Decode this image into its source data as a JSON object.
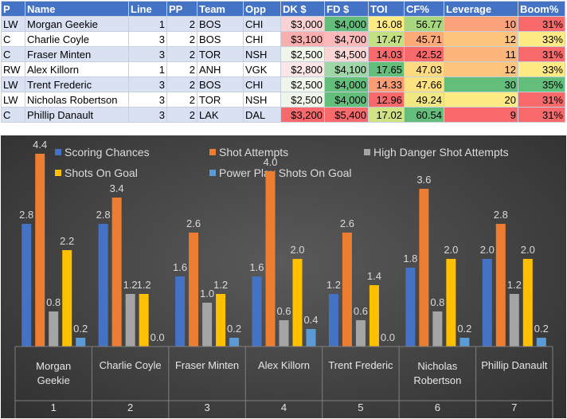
{
  "table": {
    "headers": [
      "P",
      "Name",
      "Line",
      "PP",
      "Team",
      "Opp",
      "DK $",
      "FD $",
      "TOI",
      "CF%",
      "Leverage",
      "Boom%"
    ],
    "rows": [
      [
        "LW",
        "Morgan Geekie",
        "1",
        "2",
        "BOS",
        "CHI",
        "$3,000",
        "$4,000",
        "16.08",
        "56.77",
        "10",
        "31%"
      ],
      [
        "C",
        "Charlie Coyle",
        "3",
        "2",
        "BOS",
        "CHI",
        "$3,100",
        "$4,700",
        "17.47",
        "45.71",
        "12",
        "33%"
      ],
      [
        "C",
        "Fraser Minten",
        "3",
        "2",
        "TOR",
        "NSH",
        "$2,500",
        "$4,500",
        "14.03",
        "42.52",
        "11",
        "31%"
      ],
      [
        "RW",
        "Alex Killorn",
        "1",
        "2",
        "ANH",
        "VGK",
        "$2,800",
        "$4,100",
        "17.65",
        "47.03",
        "12",
        "33%"
      ],
      [
        "LW",
        "Trent Frederic",
        "3",
        "2",
        "BOS",
        "CHI",
        "$2,500",
        "$4,000",
        "14.33",
        "47.66",
        "30",
        "35%"
      ],
      [
        "LW",
        "Nicholas Robertson",
        "3",
        "2",
        "TOR",
        "NSH",
        "$2,500",
        "$4,000",
        "12.96",
        "49.24",
        "20",
        "31%"
      ],
      [
        "C",
        "Phillip Danault",
        "3",
        "2",
        "LAK",
        "DAL",
        "$3,200",
        "$5,400",
        "17.02",
        "60.54",
        "9",
        "31%"
      ]
    ],
    "cell_colors": {
      "dk": [
        "#fbd2d3",
        "#f9aeb0",
        "#f0f6ea",
        "#fce6e7",
        "#f0f6ea",
        "#f0f6ea",
        "#f8696b"
      ],
      "fd": [
        "#63be7b",
        "#fcb9ba",
        "#fcd5d6",
        "#9fd6a8",
        "#63be7b",
        "#63be7b",
        "#f8696b"
      ],
      "toi": [
        "#ffeb84",
        "#c3e082",
        "#f8696b",
        "#63be7b",
        "#fa9d75",
        "#f8696b",
        "#d0e383"
      ],
      "cf": [
        "#a8d77f",
        "#fcaa78",
        "#f8696b",
        "#fedb81",
        "#fee282",
        "#f1e783",
        "#63be7b"
      ],
      "lev": [
        "#fca27a",
        "#fcc47d",
        "#fcb47b",
        "#fcc47d",
        "#63be7b",
        "#ffeb84",
        "#f8696b"
      ],
      "boom": [
        "#f8696b",
        "#ffeb84",
        "#f8696b",
        "#ffeb84",
        "#63be7b",
        "#f8696b",
        "#f8696b"
      ]
    }
  },
  "chart_data": {
    "type": "bar",
    "title": "",
    "legend_position": "top",
    "category_names": [
      "Morgan Geekie",
      "Charlie Coyle",
      "Fraser Minten",
      "Alex Killorn",
      "Trent Frederic",
      "Nicholas Robertson",
      "Phillip Danault"
    ],
    "categories": [
      "1",
      "2",
      "3",
      "4",
      "5",
      "6",
      "7"
    ],
    "ylim": [
      0,
      5
    ],
    "grid": false,
    "series": [
      {
        "name": "Scoring Chances",
        "color": "#4472c4",
        "values": [
          2.8,
          2.8,
          1.6,
          1.6,
          1.2,
          1.8,
          2.0
        ],
        "labels": [
          "2.8",
          "2.8",
          "1.6",
          "1.6",
          "1.2",
          "1.8",
          "2.0"
        ]
      },
      {
        "name": "Shot Attempts",
        "color": "#ed7d31",
        "values": [
          4.4,
          3.4,
          2.6,
          4.0,
          2.6,
          3.6,
          2.8
        ],
        "labels": [
          "4.4",
          "3.4",
          "2.6",
          "4.0",
          "2.6",
          "3.6",
          "2.8"
        ]
      },
      {
        "name": "High Danger Shot Attempts",
        "color": "#a5a5a5",
        "values": [
          0.8,
          1.2,
          1.0,
          0.6,
          0.6,
          0.8,
          1.2
        ],
        "labels": [
          "0.8",
          "1.2",
          "1.0",
          "0.6",
          "0.6",
          "0.8",
          "1.2"
        ]
      },
      {
        "name": "Shots On Goal",
        "color": "#ffc000",
        "values": [
          2.2,
          1.2,
          1.2,
          2.0,
          1.4,
          2.0,
          2.0
        ],
        "labels": [
          "2.2",
          "1.2",
          "1.2",
          "2.0",
          "1.4",
          "2.0",
          "2.0"
        ]
      },
      {
        "name": "Power Play Shots On Goal",
        "color": "#5b9bd5",
        "values": [
          0.2,
          0.0,
          0.2,
          0.4,
          0.0,
          0.2,
          0.2
        ],
        "labels": [
          "0.2",
          "0.0",
          "0.2",
          "0.4",
          "0.0",
          "0.2",
          "0.2"
        ]
      }
    ]
  }
}
